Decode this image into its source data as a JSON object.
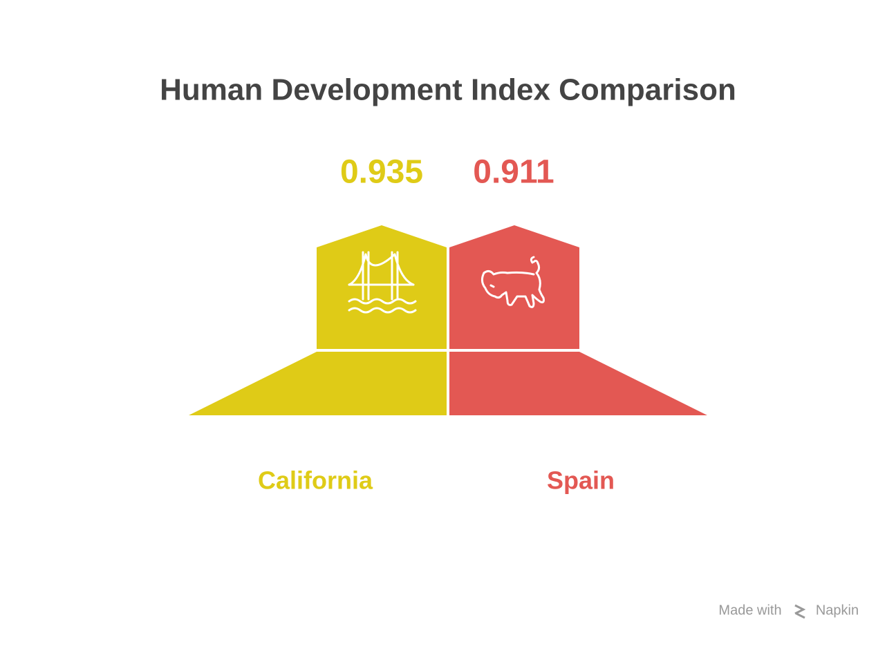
{
  "title": "Human Development Index Comparison",
  "items": [
    {
      "label": "California",
      "value": 0.935,
      "color": "#dfcb17"
    },
    {
      "label": "Spain",
      "value": 0.911,
      "color": "#e35853"
    }
  ],
  "footer": {
    "text": "Made with",
    "brand": "Napkin"
  }
}
